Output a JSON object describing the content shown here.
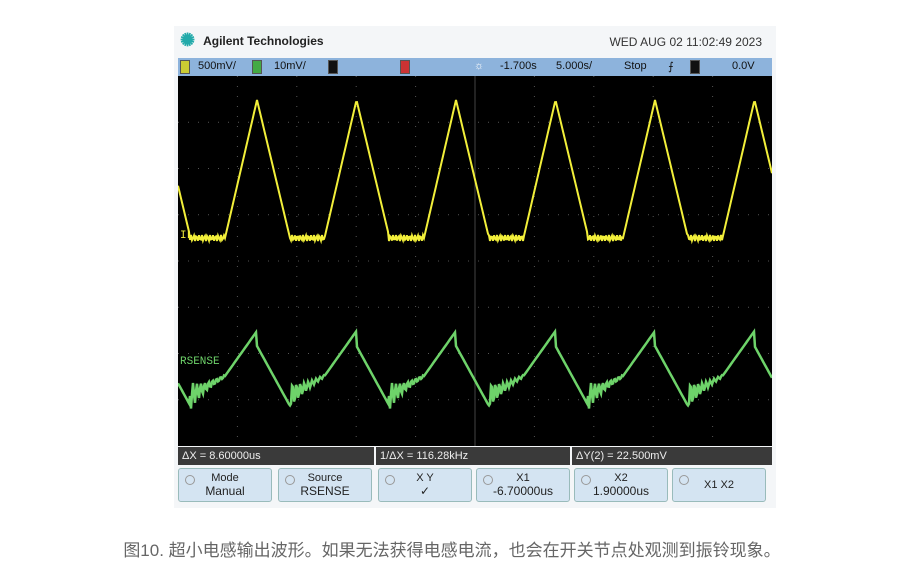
{
  "header": {
    "brand": "Agilent Technologies",
    "datetime": "WED AUG 02 11:02:49 2023"
  },
  "topbar": {
    "ch1_num": "1",
    "ch1_scale": "500mV/",
    "ch2_num": "2",
    "ch2_scale": "10mV/",
    "ch3_num": "3",
    "ch4_num": "4",
    "time_offset": "-1.700s",
    "time_scale": "5.000s/",
    "run_state": "Stop",
    "trigger_ch": "1",
    "trigger_level": "0.0V"
  },
  "traces": {
    "ch1_label": "IL",
    "ch2_label": "RSENSE",
    "ch1_color": "#f2ef3a",
    "ch2_color": "#6ed36a"
  },
  "measurements": {
    "dx": "ΔX = 8.60000us",
    "inv_dx": "1/ΔX = 116.28kHz",
    "dy": "ΔY(2) = 22.500mV"
  },
  "softkeys": [
    {
      "line1": "Mode",
      "line2": "Manual"
    },
    {
      "line1": "Source",
      "line2": "RSENSE"
    },
    {
      "line1": "X        Y",
      "line2": "✓"
    },
    {
      "line1": "X1",
      "line2": "-6.70000us"
    },
    {
      "line1": "X2",
      "line2": "1.90000us"
    },
    {
      "line1": "X1 X2",
      "line2": ""
    }
  ],
  "caption": "图10. 超小电感输出波形。如果无法获得电感电流，也会在开关节点处观测到振铃现象。"
}
